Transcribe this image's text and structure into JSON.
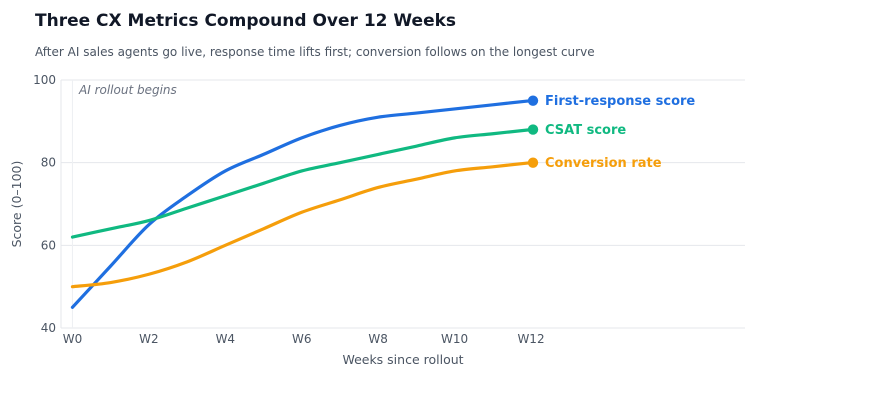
{
  "chart_data": {
    "type": "line",
    "title": "Three CX Metrics Compound Over 12 Weeks",
    "subtitle": "After AI sales agents go live, response time lifts first; conversion follows on the longest curve",
    "xlabel": "Weeks since rollout",
    "ylabel": "Score (0–100)",
    "x": [
      0,
      1,
      2,
      3,
      4,
      5,
      6,
      7,
      8,
      9,
      10,
      11,
      12
    ],
    "x_tick_values": [
      0,
      2,
      4,
      6,
      8,
      10,
      12
    ],
    "x_tick_labels": [
      "W0",
      "W2",
      "W4",
      "W6",
      "W8",
      "W10",
      "W12"
    ],
    "xlim": [
      -0.3,
      17.6
    ],
    "ylim": [
      40,
      100
    ],
    "y_ticks": [
      40,
      60,
      80,
      100
    ],
    "grid": true,
    "legend": "direct labels at line ends",
    "annotations": [
      {
        "x": 0,
        "text": "AI rollout begins"
      }
    ],
    "series": [
      {
        "name": "First-response score",
        "color": "#1f6fe0",
        "values": [
          45,
          55,
          65,
          72,
          78,
          82,
          86,
          89,
          91,
          92,
          93,
          94,
          95
        ]
      },
      {
        "name": "CSAT score",
        "color": "#10b981",
        "values": [
          62,
          64,
          66,
          69,
          72,
          75,
          78,
          80,
          82,
          84,
          86,
          87,
          88
        ]
      },
      {
        "name": "Conversion rate",
        "color": "#f59e0b",
        "values": [
          50,
          51,
          53,
          56,
          60,
          64,
          68,
          71,
          74,
          76,
          78,
          79,
          80
        ]
      }
    ]
  }
}
